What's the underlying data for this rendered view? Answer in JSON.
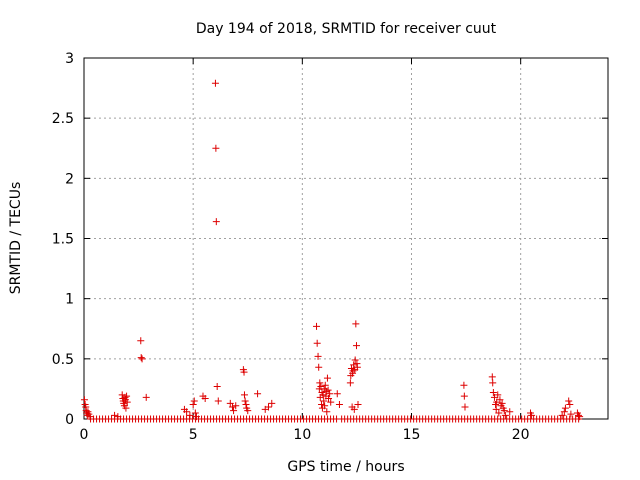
{
  "chart_data": {
    "type": "scatter",
    "title": "Day 194 of 2018, SRMTID for receiver cuut",
    "xlabel": "GPS time / hours",
    "ylabel": "SRMTID / TECUs",
    "xlim": [
      0,
      24
    ],
    "ylim": [
      0,
      3
    ],
    "xticks": [
      0,
      5,
      10,
      15,
      20
    ],
    "xtick_labels": [
      "0",
      "5",
      "10",
      "15",
      "20"
    ],
    "yticks": [
      0,
      0.5,
      1,
      1.5,
      2,
      2.5,
      3
    ],
    "ytick_labels": [
      "0",
      "0.5",
      "1",
      "1.5",
      "2",
      "2.5",
      "3"
    ],
    "grid": true,
    "marker": "+",
    "marker_color": "#dd0000",
    "series": [
      {
        "name": "SRMTID",
        "points": [
          [
            0.02,
            0.16
          ],
          [
            0.05,
            0.12
          ],
          [
            0.08,
            0.1
          ],
          [
            0.1,
            0.07
          ],
          [
            0.12,
            0.05
          ],
          [
            0.15,
            0.03
          ],
          [
            0.18,
            0.06
          ],
          [
            0.22,
            0.04
          ],
          [
            0.28,
            0.02
          ],
          [
            1.4,
            0.03
          ],
          [
            1.55,
            0.02
          ],
          [
            1.75,
            0.2
          ],
          [
            1.78,
            0.17
          ],
          [
            1.8,
            0.15
          ],
          [
            1.82,
            0.13
          ],
          [
            1.85,
            0.11
          ],
          [
            1.88,
            0.18
          ],
          [
            1.9,
            0.16
          ],
          [
            1.92,
            0.09
          ],
          [
            1.95,
            0.19
          ],
          [
            1.98,
            0.14
          ],
          [
            2.6,
            0.65
          ],
          [
            2.62,
            0.51
          ],
          [
            2.66,
            0.5
          ],
          [
            2.85,
            0.18
          ],
          [
            4.6,
            0.08
          ],
          [
            4.7,
            0.06
          ],
          [
            4.85,
            0.03
          ],
          [
            5.0,
            0.12
          ],
          [
            5.05,
            0.15
          ],
          [
            5.1,
            0.05
          ],
          [
            5.15,
            0.02
          ],
          [
            5.45,
            0.19
          ],
          [
            5.55,
            0.17
          ],
          [
            6.02,
            2.79
          ],
          [
            6.04,
            2.25
          ],
          [
            6.06,
            1.64
          ],
          [
            6.1,
            0.27
          ],
          [
            6.15,
            0.15
          ],
          [
            6.7,
            0.13
          ],
          [
            6.8,
            0.1
          ],
          [
            6.85,
            0.07
          ],
          [
            6.95,
            0.11
          ],
          [
            7.3,
            0.41
          ],
          [
            7.33,
            0.39
          ],
          [
            7.35,
            0.2
          ],
          [
            7.38,
            0.15
          ],
          [
            7.42,
            0.12
          ],
          [
            7.45,
            0.09
          ],
          [
            7.5,
            0.07
          ],
          [
            7.95,
            0.21
          ],
          [
            8.3,
            0.08
          ],
          [
            8.45,
            0.1
          ],
          [
            8.6,
            0.13
          ],
          [
            10.65,
            0.77
          ],
          [
            10.68,
            0.63
          ],
          [
            10.72,
            0.52
          ],
          [
            10.75,
            0.43
          ],
          [
            10.78,
            0.25
          ],
          [
            10.8,
            0.3
          ],
          [
            10.82,
            0.18
          ],
          [
            10.85,
            0.27
          ],
          [
            10.88,
            0.12
          ],
          [
            10.9,
            0.22
          ],
          [
            10.92,
            0.09
          ],
          [
            10.95,
            0.2
          ],
          [
            10.98,
            0.15
          ],
          [
            11.0,
            0.25
          ],
          [
            11.02,
            0.11
          ],
          [
            11.05,
            0.28
          ],
          [
            11.08,
            0.19
          ],
          [
            11.1,
            0.23
          ],
          [
            11.12,
            0.06
          ],
          [
            11.15,
            0.34
          ],
          [
            11.18,
            0.24
          ],
          [
            11.2,
            0.17
          ],
          [
            11.25,
            0.21
          ],
          [
            11.3,
            0.14
          ],
          [
            11.6,
            0.21
          ],
          [
            11.7,
            0.12
          ],
          [
            12.2,
            0.3
          ],
          [
            12.22,
            0.36
          ],
          [
            12.25,
            0.42
          ],
          [
            12.28,
            0.1
          ],
          [
            12.3,
            0.38
          ],
          [
            12.32,
            0.4
          ],
          [
            12.35,
            0.45
          ],
          [
            12.38,
            0.08
          ],
          [
            12.4,
            0.41
          ],
          [
            12.42,
            0.49
          ],
          [
            12.45,
            0.79
          ],
          [
            12.48,
            0.61
          ],
          [
            12.5,
            0.46
          ],
          [
            12.52,
            0.43
          ],
          [
            12.55,
            0.12
          ],
          [
            17.4,
            0.28
          ],
          [
            17.42,
            0.19
          ],
          [
            17.45,
            0.1
          ],
          [
            18.7,
            0.35
          ],
          [
            18.72,
            0.3
          ],
          [
            18.75,
            0.22
          ],
          [
            18.8,
            0.18
          ],
          [
            18.85,
            0.12
          ],
          [
            18.88,
            0.08
          ],
          [
            18.9,
            0.14
          ],
          [
            18.95,
            0.2
          ],
          [
            19.0,
            0.05
          ],
          [
            19.05,
            0.16
          ],
          [
            19.1,
            0.11
          ],
          [
            19.15,
            0.13
          ],
          [
            19.2,
            0.09
          ],
          [
            19.25,
            0.07
          ],
          [
            19.3,
            0.03
          ],
          [
            19.5,
            0.06
          ],
          [
            20.45,
            0.05
          ],
          [
            20.5,
            0.03
          ],
          [
            21.9,
            0.03
          ],
          [
            22.0,
            0.06
          ],
          [
            22.05,
            0.09
          ],
          [
            22.2,
            0.15
          ],
          [
            22.25,
            0.12
          ],
          [
            22.3,
            0.04
          ],
          [
            22.6,
            0.05
          ],
          [
            22.65,
            0.03
          ],
          [
            22.7,
            0.02
          ]
        ],
        "baseline_segments": [
          [
            0.3,
            11.6
          ],
          [
            11.8,
            22.75
          ]
        ]
      }
    ]
  }
}
